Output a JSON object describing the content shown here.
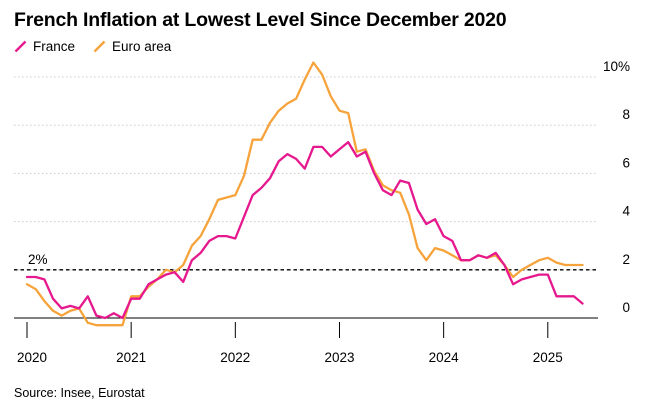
{
  "title": "French Inflation at Lowest Level Since December 2020",
  "source": "Source: Insee, Eurostat",
  "colors": {
    "france": "#e6188e",
    "euro_area": "#f6a33b",
    "grid": "#c8c8c8",
    "axis": "#000000"
  },
  "chart_data": {
    "type": "line",
    "title": "French Inflation at Lowest Level Since December 2020",
    "xlabel": "",
    "ylabel": "",
    "ylim": [
      -0.3,
      10.5
    ],
    "yticks": [
      0,
      2,
      4,
      6,
      8,
      10
    ],
    "ytick_labels": [
      "0",
      "2",
      "4",
      "6",
      "8",
      "10%"
    ],
    "xticks": [
      "2020",
      "2021",
      "2022",
      "2023",
      "2024",
      "2025"
    ],
    "reference_line": {
      "value": 2,
      "label": "2%"
    },
    "legend": [
      "France",
      "Euro area"
    ],
    "x_start": "2020-01",
    "series": [
      {
        "name": "France",
        "color": "#e6188e",
        "values": [
          1.7,
          1.7,
          1.6,
          0.8,
          0.4,
          0.5,
          0.4,
          0.9,
          0.1,
          0.0,
          0.2,
          0.0,
          0.8,
          0.8,
          1.4,
          1.6,
          1.8,
          1.9,
          1.5,
          2.4,
          2.7,
          3.2,
          3.4,
          3.4,
          3.3,
          4.2,
          5.1,
          5.4,
          5.8,
          6.5,
          6.8,
          6.6,
          6.2,
          7.1,
          7.1,
          6.7,
          7.0,
          7.3,
          6.7,
          6.9,
          6.0,
          5.3,
          5.1,
          5.7,
          5.6,
          4.5,
          3.9,
          4.1,
          3.4,
          3.2,
          2.4,
          2.4,
          2.6,
          2.5,
          2.7,
          2.2,
          1.4,
          1.6,
          1.7,
          1.8,
          1.8,
          0.9,
          0.9,
          0.9,
          0.6
        ]
      },
      {
        "name": "Euro area",
        "color": "#f6a33b",
        "values": [
          1.4,
          1.2,
          0.7,
          0.3,
          0.1,
          0.3,
          0.4,
          -0.2,
          -0.3,
          -0.3,
          -0.3,
          -0.3,
          0.9,
          0.9,
          1.3,
          1.6,
          2.0,
          1.9,
          2.2,
          3.0,
          3.4,
          4.1,
          4.9,
          5.0,
          5.1,
          5.9,
          7.4,
          7.4,
          8.1,
          8.6,
          8.9,
          9.1,
          9.9,
          10.6,
          10.1,
          9.2,
          8.6,
          8.5,
          6.9,
          7.0,
          6.1,
          5.5,
          5.3,
          5.2,
          4.3,
          2.9,
          2.4,
          2.9,
          2.8,
          2.6,
          2.4,
          2.4,
          2.6,
          2.5,
          2.6,
          2.2,
          1.7,
          2.0,
          2.2,
          2.4,
          2.5,
          2.3,
          2.2,
          2.2,
          2.2
        ]
      }
    ]
  }
}
